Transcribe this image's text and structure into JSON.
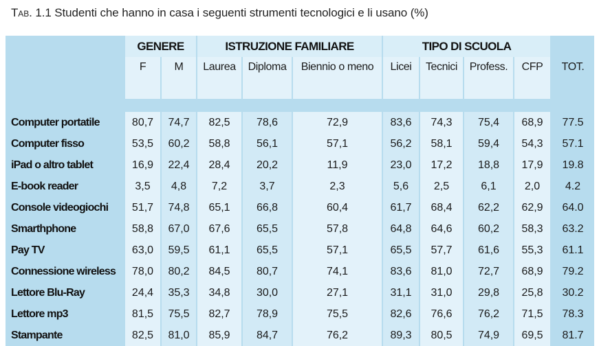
{
  "caption": {
    "prefix": "Tab. 1.1",
    "text": "Studenti che hanno in casa i seguenti strumenti tecnologici e li usano (%)"
  },
  "groups": {
    "genere": "GENERE",
    "istruzione": "ISTRUZIONE FAMILIARE",
    "scuola": "TIPO DI SCUOLA"
  },
  "columns": [
    "F",
    "M",
    "Laurea",
    "Diploma",
    "Biennio o meno",
    "Licei",
    "Tecnici",
    "Profess.",
    "CFP",
    "TOT."
  ],
  "rows": [
    {
      "label": "Computer portatile",
      "values": [
        "80,7",
        "74,7",
        "82,5",
        "78,6",
        "72,9",
        "83,6",
        "74,3",
        "75,4",
        "68,9",
        "77.5"
      ]
    },
    {
      "label": "Computer fisso",
      "values": [
        "53,5",
        "60,2",
        "58,8",
        "56,1",
        "57,1",
        "56,2",
        "58,1",
        "59,4",
        "54,3",
        "57.1"
      ]
    },
    {
      "label": "iPad o altro tablet",
      "values": [
        "16,9",
        "22,4",
        "28,4",
        "20,2",
        "11,9",
        "23,0",
        "17,2",
        "18,8",
        "17,9",
        "19.8"
      ]
    },
    {
      "label": "E-book reader",
      "values": [
        "3,5",
        "4,8",
        "7,2",
        "3,7",
        "2,3",
        "5,6",
        "2,5",
        "6,1",
        "2,0",
        "4.2"
      ]
    },
    {
      "label": "Console videogiochi",
      "values": [
        "51,7",
        "74,8",
        "65,1",
        "66,8",
        "60,4",
        "61,7",
        "68,4",
        "62,2",
        "62,9",
        "64.0"
      ]
    },
    {
      "label": "Smarthphone",
      "values": [
        "58,8",
        "67,0",
        "67,6",
        "65,5",
        "57,8",
        "64,8",
        "64,6",
        "60,2",
        "58,3",
        "63.2"
      ]
    },
    {
      "label": "Pay TV",
      "values": [
        "63,0",
        "59,5",
        "61,1",
        "65,5",
        "57,1",
        "65,5",
        "57,7",
        "61,6",
        "55,3",
        "61.1"
      ]
    },
    {
      "label": "Connessione wireless",
      "values": [
        "78,0",
        "80,2",
        "84,5",
        "80,7",
        "74,1",
        "83,6",
        "81,0",
        "72,7",
        "68,9",
        "79.2"
      ]
    },
    {
      "label": "Lettore Blu-Ray",
      "values": [
        "24,4",
        "35,3",
        "34,8",
        "30,0",
        "27,1",
        "31,1",
        "31,0",
        "29,8",
        "25,8",
        "30.2"
      ]
    },
    {
      "label": "Lettore mp3",
      "values": [
        "81,5",
        "75,5",
        "82,7",
        "78,9",
        "75,5",
        "82,6",
        "76,6",
        "76,2",
        "71,5",
        "78.3"
      ]
    },
    {
      "label": "Stampante",
      "values": [
        "82,5",
        "81,0",
        "85,9",
        "84,7",
        "76,2",
        "89,3",
        "80,5",
        "74,9",
        "69,5",
        "81.7"
      ]
    }
  ],
  "colors": {
    "table_bg": "#b7dcee",
    "cell_light": "#e3f2fa",
    "cell_alt": "#d2eaf6"
  }
}
